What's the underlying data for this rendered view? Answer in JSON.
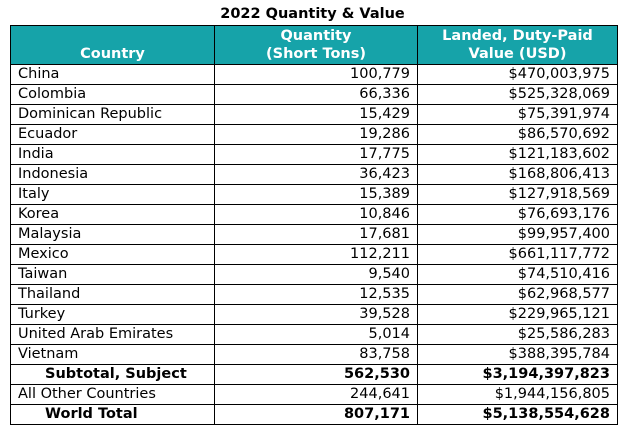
{
  "title": "2022 Quantity & Value",
  "colors": {
    "header_bg": "#16a3a9",
    "header_text": "#ffffff"
  },
  "headers": {
    "country": "Country",
    "quantity_line1": "Quantity",
    "quantity_line2": "(Short Tons)",
    "value_line1": "Landed, Duty-Paid",
    "value_line2": "Value (USD)"
  },
  "rows": [
    {
      "country": "China",
      "quantity": "100,779",
      "value": "$470,003,975"
    },
    {
      "country": "Colombia",
      "quantity": "66,336",
      "value": "$525,328,069"
    },
    {
      "country": "Dominican Republic",
      "quantity": "15,429",
      "value": "$75,391,974"
    },
    {
      "country": "Ecuador",
      "quantity": "19,286",
      "value": "$86,570,692"
    },
    {
      "country": "India",
      "quantity": "17,775",
      "value": "$121,183,602"
    },
    {
      "country": "Indonesia",
      "quantity": "36,423",
      "value": "$168,806,413"
    },
    {
      "country": "Italy",
      "quantity": "15,389",
      "value": "$127,918,569"
    },
    {
      "country": "Korea",
      "quantity": "10,846",
      "value": "$76,693,176"
    },
    {
      "country": "Malaysia",
      "quantity": "17,681",
      "value": "$99,957,400"
    },
    {
      "country": "Mexico",
      "quantity": "112,211",
      "value": "$661,117,772"
    },
    {
      "country": "Taiwan",
      "quantity": "9,540",
      "value": "$74,510,416"
    },
    {
      "country": "Thailand",
      "quantity": "12,535",
      "value": "$62,968,577"
    },
    {
      "country": "Turkey",
      "quantity": "39,528",
      "value": "$229,965,121"
    },
    {
      "country": "United Arab Emirates",
      "quantity": "5,014",
      "value": "$25,586,283"
    },
    {
      "country": "Vietnam",
      "quantity": "83,758",
      "value": "$388,395,784"
    }
  ],
  "subtotal": {
    "label": "Subtotal, Subject",
    "quantity": "562,530",
    "value": "$3,194,397,823"
  },
  "other": {
    "label": "All Other Countries",
    "quantity": "244,641",
    "value": "$1,944,156,805"
  },
  "world_total": {
    "label": "World Total",
    "quantity": "807,171",
    "value": "$5,138,554,628"
  }
}
